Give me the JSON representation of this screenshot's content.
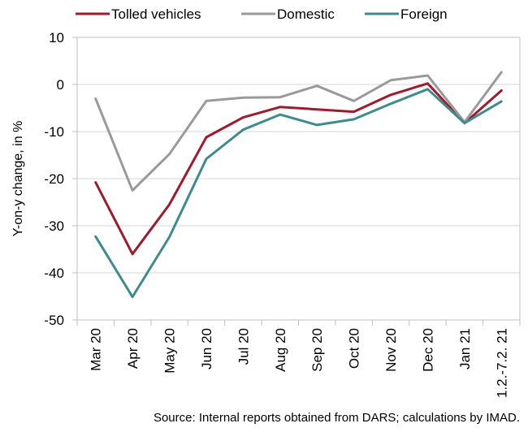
{
  "chart_data": {
    "type": "line",
    "categories": [
      "Mar 20",
      "Apr 20",
      "May 20",
      "Jun 20",
      "Jul 20",
      "Aug 20",
      "Sep 20",
      "Oct 20",
      "Nov 20",
      "Dec 20",
      "Jan 21",
      "1.2.-7.2. 21"
    ],
    "ylabel": "Y-on-y change, in %",
    "xlabel": "",
    "ylim": [
      -50,
      10
    ],
    "yticks": [
      -50,
      -40,
      -30,
      -20,
      -10,
      0,
      10
    ],
    "grid": true,
    "legend_position": "top",
    "series": [
      {
        "name": "Tolled vehicles",
        "color": "#a01a2e",
        "values": [
          -20.8,
          -36.0,
          -25.5,
          -11.2,
          -7.0,
          -4.8,
          -5.3,
          -5.8,
          -2.2,
          0.2,
          -8.2,
          -1.3
        ]
      },
      {
        "name": "Domestic",
        "color": "#9a9a9a",
        "values": [
          -3.0,
          -22.5,
          -14.8,
          -3.5,
          -2.8,
          -2.7,
          -0.3,
          -3.5,
          0.9,
          1.9,
          -8.0,
          2.6
        ]
      },
      {
        "name": "Foreign",
        "color": "#3d8b8f",
        "values": [
          -32.3,
          -45.1,
          -32.4,
          -15.8,
          -9.6,
          -6.4,
          -8.6,
          -7.4,
          -4.1,
          -1.0,
          -8.2,
          -3.6
        ]
      }
    ],
    "source": "Source: Internal reports obtained from DARS; calculations by IMAD."
  }
}
